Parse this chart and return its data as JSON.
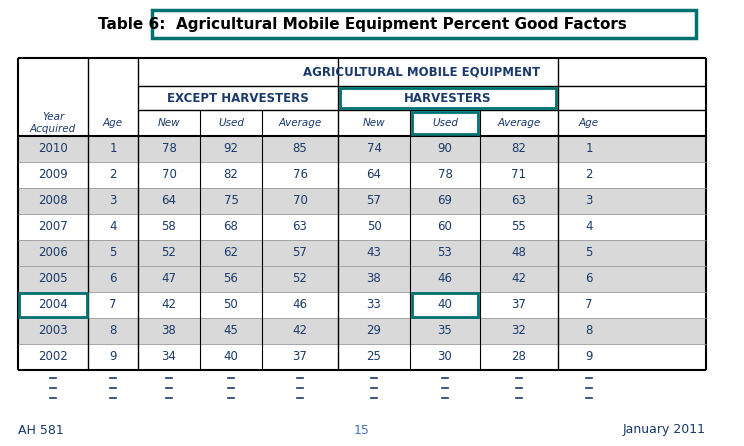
{
  "title_prefix": "Table 6:",
  "title_main": "Agricultural Mobile Equipment Percent Good Factors",
  "teal_color": "#007070",
  "header1": "AGRICULTURAL MOBILE EQUIPMENT",
  "header2a": "EXCEPT HARVESTERS",
  "header2b": "HARVESTERS",
  "rows": [
    [
      "2010",
      "1",
      "78",
      "92",
      "85",
      "74",
      "90",
      "82",
      "1"
    ],
    [
      "2009",
      "2",
      "70",
      "82",
      "76",
      "64",
      "78",
      "71",
      "2"
    ],
    [
      "2008",
      "3",
      "64",
      "75",
      "70",
      "57",
      "69",
      "63",
      "3"
    ],
    [
      "2007",
      "4",
      "58",
      "68",
      "63",
      "50",
      "60",
      "55",
      "4"
    ],
    [
      "2006",
      "5",
      "52",
      "62",
      "57",
      "43",
      "53",
      "48",
      "5"
    ],
    [
      "2005",
      "6",
      "47",
      "56",
      "52",
      "38",
      "46",
      "42",
      "6"
    ],
    [
      "2004",
      "7",
      "42",
      "50",
      "46",
      "33",
      "40",
      "37",
      "7"
    ],
    [
      "2003",
      "8",
      "38",
      "45",
      "42",
      "29",
      "35",
      "32",
      "8"
    ],
    [
      "2002",
      "9",
      "34",
      "40",
      "37",
      "25",
      "30",
      "28",
      "9"
    ]
  ],
  "gray_rows": [
    0,
    2,
    4,
    5,
    7
  ],
  "gray_color": "#d9d9d9",
  "footer_left": "AH 581",
  "footer_center": "15",
  "footer_right": "January 2011",
  "text_color": "#1a3a6b",
  "black": "#000000",
  "background": "#ffffff",
  "footer_center_color": "#4472c4"
}
